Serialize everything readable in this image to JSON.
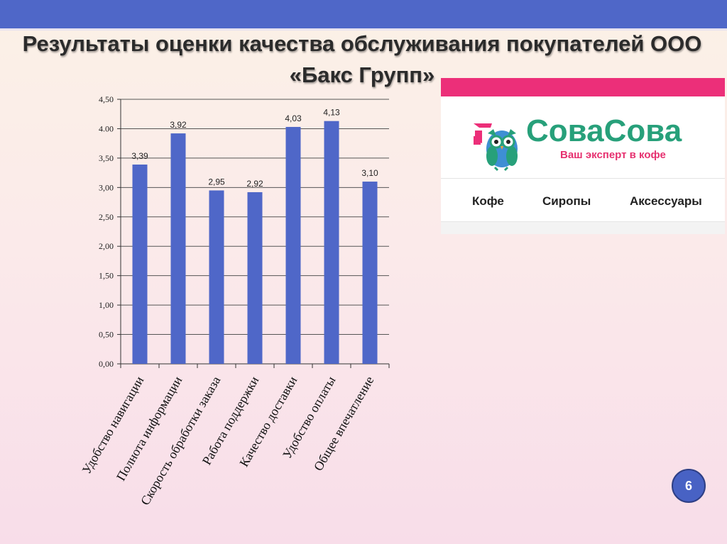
{
  "slide": {
    "title_line1": "Результаты оценки качества обслуживания покупателей ООО",
    "title_line2": "«Бакс Групп»",
    "page_number": "6"
  },
  "logo": {
    "brand": "СоваСова",
    "tagline": "Ваш эксперт в кофе",
    "nav": [
      "Кофе",
      "Сиропы",
      "Аксессуары"
    ],
    "colors": {
      "pink": "#ec2f79",
      "green": "#27a07a",
      "owl_blue": "#3e8fd4"
    }
  },
  "chart_data": {
    "type": "bar",
    "categories": [
      "Удобство навигации",
      "Полнота информации",
      "Скорость обработки заказа",
      "Работа поддержки",
      "Качество доставки",
      "Удобство оплаты",
      "Общее впечатление"
    ],
    "values": [
      3.39,
      3.92,
      2.95,
      2.92,
      4.03,
      4.13,
      3.1
    ],
    "data_labels": [
      "3,39",
      "3,92",
      "2,95",
      "2,92",
      "4,03",
      "4,13",
      "3,10"
    ],
    "ylim": [
      0,
      4.5
    ],
    "yticks": [
      "0,00",
      "0,50",
      "1,00",
      "1,50",
      "2,00",
      "2,50",
      "3,00",
      "3,50",
      "4.00",
      "4,50"
    ],
    "grid": true,
    "bar_color": "#4f67c8",
    "title": "",
    "xlabel": "",
    "ylabel": ""
  }
}
